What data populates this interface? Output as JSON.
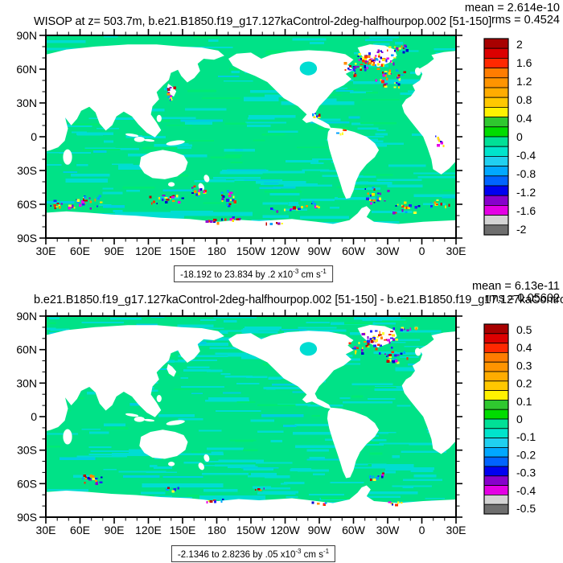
{
  "page": {
    "background": "#ffffff"
  },
  "panels": [
    {
      "title": "WISOP at z= 503.7m, b.e21.B1850.f19_g17.127kaControl-2deg-halfhourpop.002 [51-150]",
      "mean": "mean = 2.614e-10",
      "rms": "rms = 0.4524",
      "caption": {
        "range": "-18.192 to 23.834 by .2 ",
        "scale": "x10",
        "scale_exp": "-3",
        "unit": " cm s",
        "unit_exp": "-1"
      },
      "colorbar_labels": [
        "2",
        "1.6",
        "1.2",
        "0.8",
        "0.4",
        "0",
        "-0.4",
        "-0.8",
        "-1.2",
        "-1.6",
        "-2"
      ]
    },
    {
      "title": "b.e21.B1850.f19_g17.127kaControl-2deg-halfhourpop.002 [51-150] - b.e21.B1850.f19_g17.127kaContro",
      "mean": "mean = 6.13e-11",
      "rms": "rms = 0.05602",
      "caption": {
        "range": "-2.1346 to 2.8236 by .05 ",
        "scale": "x10",
        "scale_exp": "-3",
        "unit": " cm s",
        "unit_exp": "-1"
      },
      "colorbar_labels": [
        "0.5",
        "0.4",
        "0.3",
        "0.2",
        "0.1",
        "0",
        "-0.1",
        "-0.2",
        "-0.3",
        "-0.4",
        "-0.5"
      ]
    }
  ],
  "axes": {
    "x_tick_labels": [
      "30E",
      "60E",
      "90E",
      "120E",
      "150E",
      "180",
      "150W",
      "120W",
      "90W",
      "60W",
      "30W",
      "0",
      "30E"
    ],
    "y_tick_labels": [
      "90N",
      "60N",
      "30N",
      "0",
      "30S",
      "60S",
      "90S"
    ]
  },
  "colorbar": {
    "colors": [
      "#a80000",
      "#dc0000",
      "#ff2800",
      "#ff7c00",
      "#ff9400",
      "#ffac00",
      "#ffc800",
      "#fff200",
      "#2fc82f",
      "#00dc00",
      "#00e096",
      "#00e4cc",
      "#20d0f0",
      "#00a8ff",
      "#0064ff",
      "#0000f0",
      "#8800cc",
      "#e400e4",
      "#d3d3d3",
      "#6e6e6e"
    ]
  },
  "map_colors": {
    "land": "#ffffff",
    "ocean_green": "#00e287",
    "ocean_cyan": "#00ddd2",
    "ocean_cyan_deep": "#00cfe0",
    "ocean_green_alt": "#00ea74",
    "speckle_palette": [
      "#c00000",
      "#ff3000",
      "#ff8c00",
      "#ffe400",
      "#2222ff",
      "#0000d0",
      "#9000d0",
      "#e800e8",
      "#00a0ff",
      "#ffff30"
    ]
  },
  "chart_data": [
    {
      "type": "heatmap",
      "projection": "global cylindrical-equidistant map, longitude axis runs 30E eastward around the globe back to 30E",
      "title": "WISOP at z= 503.7m, b.e21.B1850.f19_g17.127kaControl-2deg-halfhourpop.002 [51-150]",
      "stats": {
        "mean": "2.614e-10",
        "rms": "0.4524"
      },
      "value_range_caption": "-18.192 to 23.834 by .2 x10^-3 cm s^-1",
      "colorbar_tick_labels": [
        2,
        1.6,
        1.2,
        0.8,
        0.4,
        0,
        -0.4,
        -0.8,
        -1.2,
        -1.6,
        -2
      ],
      "contour_interval": 0.2,
      "x_tick_labels": [
        "30E",
        "60E",
        "90E",
        "120E",
        "150E",
        "180",
        "150W",
        "120W",
        "90W",
        "60W",
        "30W",
        "0",
        "30E"
      ],
      "y_tick_labels": [
        "90N",
        "60N",
        "30N",
        "0",
        "30S",
        "60S",
        "90S"
      ],
      "legend_position": "vertical labelbar at right",
      "grid": false,
      "pattern_summary": "Ocean interior mostly within -0.2..+0.2 (green/cyan mottling); strong |v|>1 speckling (reds/blues/purples) in the N Atlantic subpolar gyre around Greenland/Labrador, Kuroshio off Japan, Southern Ocean band 50S-65S, Drake Passage and Antarctic coast; land masked white"
    },
    {
      "type": "heatmap",
      "projection": "global cylindrical-equidistant map, longitude axis runs 30E eastward around the globe back to 30E",
      "title": "b.e21.B1850.f19_g17.127kaControl-2deg-halfhourpop.002 [51-150] - b.e21.B1850.f19_g17.127kaContro (difference map, title clipped at right edge)",
      "stats": {
        "mean": "6.13e-11",
        "rms": "0.05602"
      },
      "value_range_caption": "-2.1346 to 2.8236 by .05 x10^-3 cm s^-1",
      "colorbar_tick_labels": [
        0.5,
        0.4,
        0.3,
        0.2,
        0.1,
        0,
        -0.1,
        -0.2,
        -0.3,
        -0.4,
        -0.5
      ],
      "contour_interval": 0.05,
      "x_tick_labels": [
        "30E",
        "60E",
        "90E",
        "120E",
        "150E",
        "180",
        "150W",
        "120W",
        "90W",
        "60W",
        "30W",
        "0",
        "30E"
      ],
      "y_tick_labels": [
        "90N",
        "60N",
        "30N",
        "0",
        "30S",
        "60S",
        "90S"
      ],
      "legend_position": "vertical labelbar at right",
      "grid": false,
      "pattern_summary": "Difference field near zero almost everywhere (uniform green/cyan mottling); concentrated high-amplitude speckling around Greenland/Labrador in the N Atlantic, small clusters near Kerguelen, Drake Passage and along the Antarctic coast; land masked white"
    }
  ]
}
